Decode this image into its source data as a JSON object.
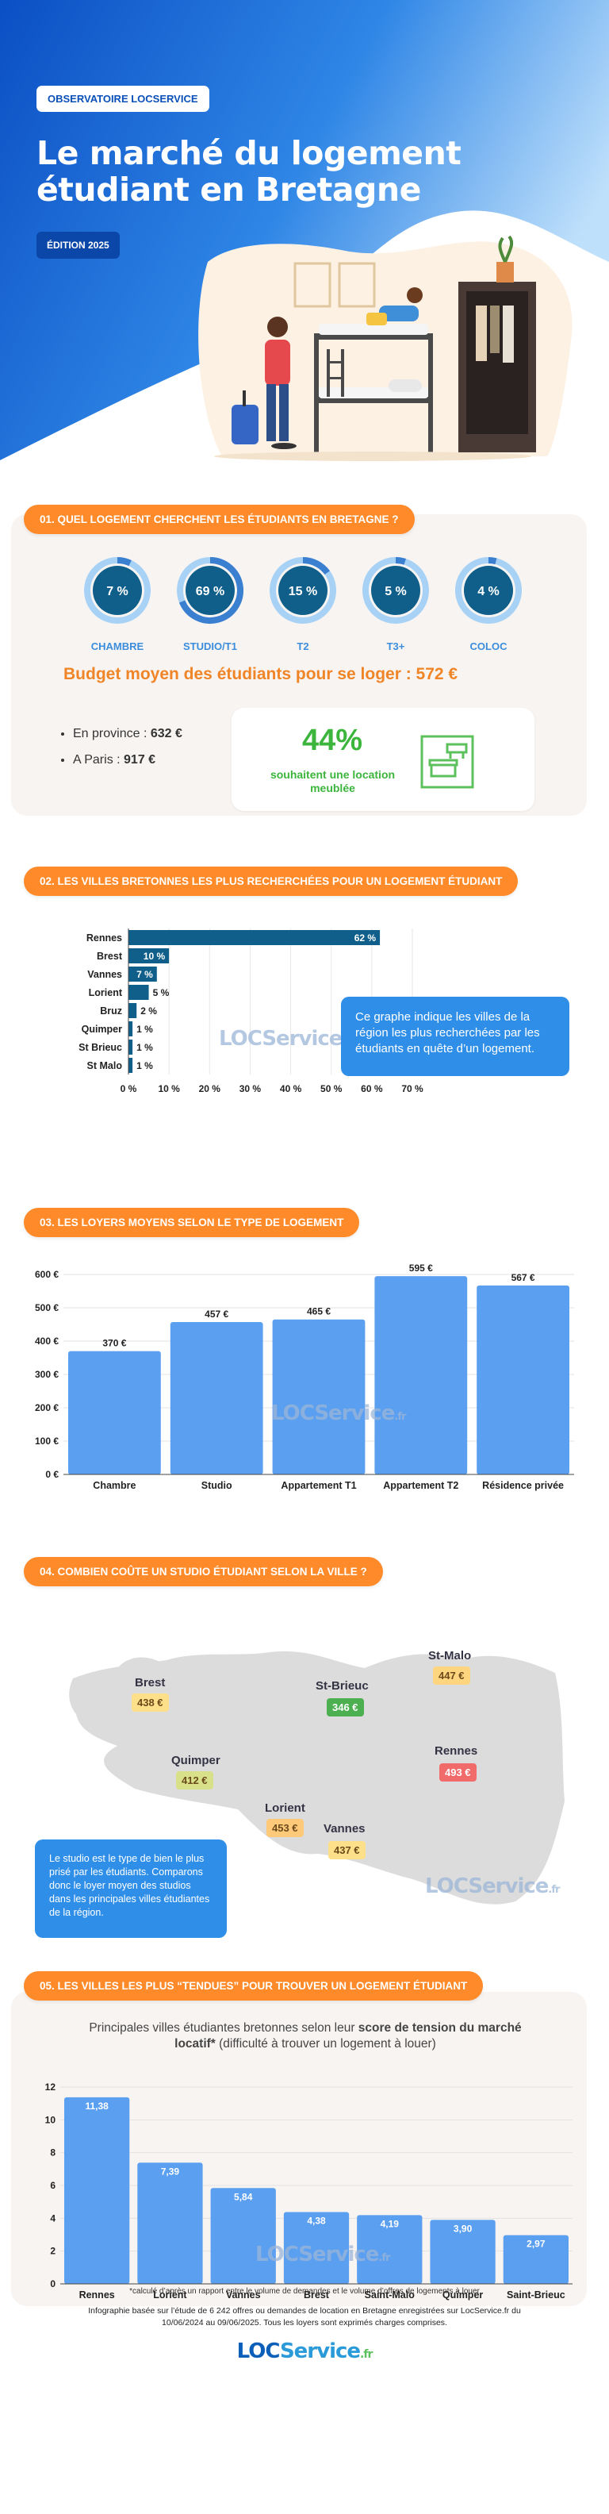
{
  "header": {
    "badge": "OBSERVATOIRE LOCSERVICE",
    "title_line1": "Le marché du logement",
    "title_line2": "étudiant en Bretagne",
    "edition": "ÉDITION 2025"
  },
  "section1": {
    "title": "01. QUEL LOGEMENT CHERCHENT LES ÉTUDIANTS EN BRETAGNE ?",
    "donuts": [
      {
        "label": "CHAMBRE",
        "value": 7,
        "text": "7 %"
      },
      {
        "label": "STUDIO/T1",
        "value": 69,
        "text": "69 %"
      },
      {
        "label": "T2",
        "value": 15,
        "text": "15 %"
      },
      {
        "label": "T3+",
        "value": 5,
        "text": "5 %"
      },
      {
        "label": "COLOC",
        "value": 4,
        "text": "4 %"
      }
    ],
    "budget": "Budget moyen des étudiants pour se loger : 572 €",
    "province_label": "En province :",
    "province_value": "632 €",
    "paris_label": "A Paris :",
    "paris_value": "917 €",
    "meuble_pct": "44%",
    "meuble_text": "souhaitent une location meublée"
  },
  "section2": {
    "title": "02. LES VILLES BRETONNES LES PLUS RECHERCHÉES POUR UN LOGEMENT ÉTUDIANT",
    "info": "Ce graphe indique les villes de la région les plus recherchées par les étudiants en quête d’un logement."
  },
  "section3": {
    "title": "03. LES LOYERS MOYENS SELON LE TYPE DE LOGEMENT"
  },
  "section4": {
    "title": "04. COMBIEN COÛTE UN STUDIO ÉTUDIANT SELON LA VILLE ?",
    "cities": [
      {
        "name": "Brest",
        "price": "438 €",
        "color": "#ffe08a"
      },
      {
        "name": "St-Brieuc",
        "price": "346 €",
        "color": "#4caf50"
      },
      {
        "name": "St-Malo",
        "price": "447 €",
        "color": "#ffd580"
      },
      {
        "name": "Quimper",
        "price": "412 €",
        "color": "#d8e08a"
      },
      {
        "name": "Rennes",
        "price": "493 €",
        "color": "#f26b6b"
      },
      {
        "name": "Lorient",
        "price": "453 €",
        "color": "#ffc97a"
      },
      {
        "name": "Vannes",
        "price": "437 €",
        "color": "#ffe08a"
      }
    ],
    "info": "Le studio est le type de bien le plus prisé par les étudiants. Comparons donc le loyer moyen des studios dans les principales villes étudiantes de la région."
  },
  "section5": {
    "title": "05. LES VILLES LES PLUS “TENDUES” POUR TROUVER UN LOGEMENT ÉTUDIANT",
    "subtitle_a": "Principales villes étudiantes bretonnes selon leur ",
    "subtitle_b": "score de tension du marché locatif*",
    "subtitle_c": " (difficulté à trouver un logement à louer)"
  },
  "footer": {
    "note": "*calculé d’après un rapport entre le volume de demandes et le volume d’offres de logements à louer",
    "source_line1": "Infographie basée sur l’étude de 6 242 offres ou demandes de location en Bretagne enregistrées sur LocService.fr du",
    "source_line2": "10/06/2024 au 09/06/2025. Tous les loyers sont exprimés charges comprises."
  },
  "brand": {
    "loc": "LOC",
    "service": "Service",
    "fr": ".fr"
  },
  "colors": {
    "orange": "#ff8a2a",
    "blue": "#5b9ff0",
    "navy": "#0f5f8a",
    "green": "#3cb53c"
  },
  "chart_data": [
    {
      "type": "bar",
      "orientation": "horizontal",
      "categories": [
        "Rennes",
        "Brest",
        "Vannes",
        "Lorient",
        "Bruz",
        "Quimper",
        "St Brieuc",
        "St Malo"
      ],
      "values": [
        62,
        10,
        7,
        5,
        2,
        1,
        1,
        1
      ],
      "value_labels": [
        "62 %",
        "10 %",
        "7 %",
        "5 %",
        "2 %",
        "1 %",
        "1 %",
        "1 %"
      ],
      "xticks": [
        "0 %",
        "10 %",
        "20 %",
        "30 %",
        "40 %",
        "50 %",
        "60 %",
        "70 %"
      ],
      "xlim": [
        0,
        70
      ]
    },
    {
      "type": "bar",
      "categories": [
        "Chambre",
        "Studio",
        "Appartement T1",
        "Appartement T2",
        "Résidence privée"
      ],
      "values": [
        370,
        457,
        465,
        595,
        567
      ],
      "value_labels": [
        "370 €",
        "457 €",
        "465 €",
        "595 €",
        "567 €"
      ],
      "yticks": [
        "0 €",
        "100 €",
        "200 €",
        "300 €",
        "400 €",
        "500 €",
        "600 €"
      ],
      "ylim": [
        0,
        600
      ]
    },
    {
      "type": "bar",
      "categories": [
        "Rennes",
        "Lorient",
        "Vannes",
        "Brest",
        "Saint-Malo",
        "Quimper",
        "Saint-Brieuc"
      ],
      "values": [
        11.38,
        7.39,
        5.84,
        4.38,
        4.19,
        3.9,
        2.97
      ],
      "value_labels": [
        "11,38",
        "7,39",
        "5,84",
        "4,38",
        "4,19",
        "3,90",
        "2,97"
      ],
      "yticks": [
        "0",
        "2",
        "4",
        "6",
        "8",
        "10",
        "12"
      ],
      "ylim": [
        0,
        12
      ]
    }
  ]
}
